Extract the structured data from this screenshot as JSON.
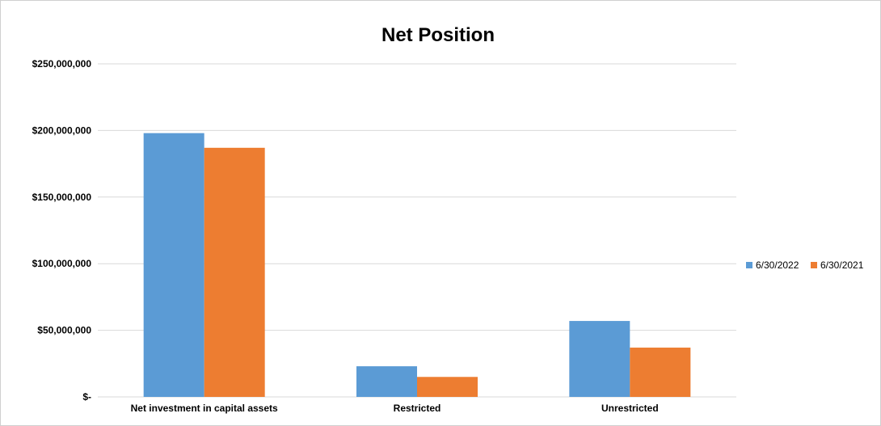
{
  "chart_data": {
    "type": "bar",
    "title": "Net Position",
    "categories": [
      "Net investment in capital assets",
      "Restricted",
      "Unrestricted"
    ],
    "series": [
      {
        "name": "6/30/2022",
        "color": "#5b9bd5",
        "values": [
          198000000,
          23000000,
          57000000
        ]
      },
      {
        "name": "6/30/2021",
        "color": "#ed7d31",
        "values": [
          187000000,
          15000000,
          37000000
        ]
      }
    ],
    "ylim": [
      0,
      250000000
    ],
    "yticks": [
      0,
      50000000,
      100000000,
      150000000,
      200000000,
      250000000
    ],
    "ytick_labels": [
      "$-",
      "$50,000,000",
      "$100,000,000",
      "$150,000,000",
      "$200,000,000",
      "$250,000,000"
    ],
    "grid": true,
    "legend": "right"
  }
}
